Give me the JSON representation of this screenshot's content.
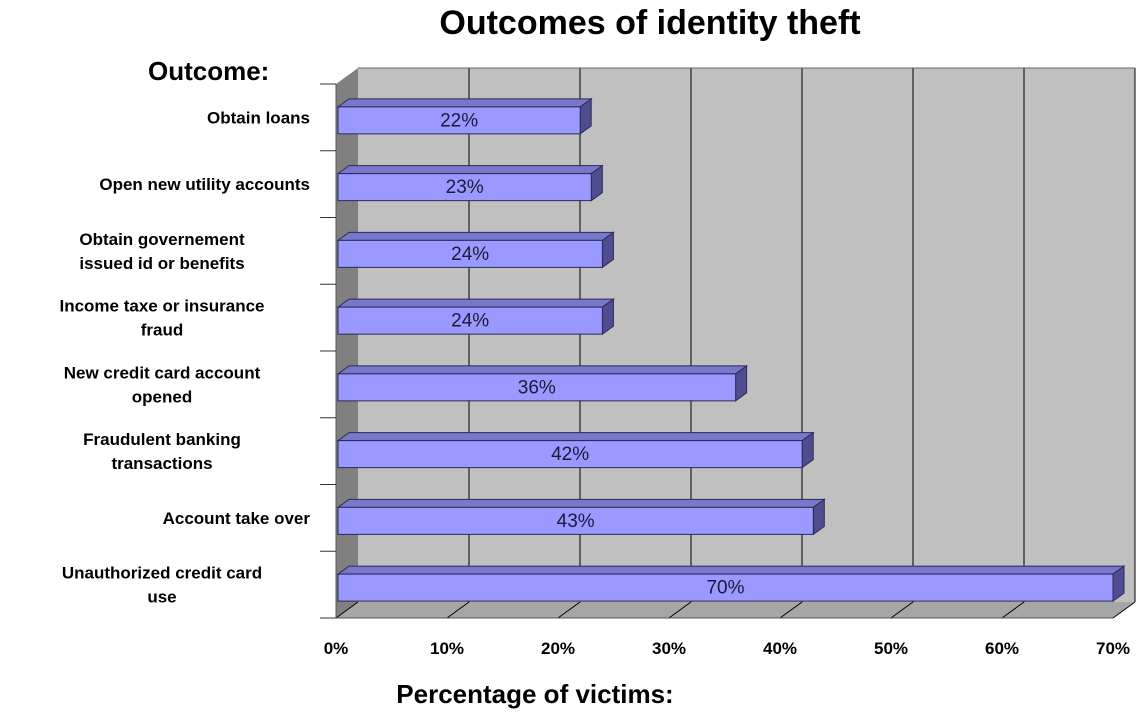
{
  "chart_data": {
    "type": "bar",
    "orientation": "horizontal",
    "title": "Outcomes of identity theft",
    "ylabel": "Outcome:",
    "xlabel": "Percentage of victims:",
    "categories": [
      [
        "Obtain loans"
      ],
      [
        "Open new utility accounts"
      ],
      [
        "Obtain governement",
        "issued id or benefits"
      ],
      [
        "Income taxe or insurance",
        "fraud"
      ],
      [
        "New credit card account",
        "opened"
      ],
      [
        "Fraudulent banking",
        "transactions"
      ],
      [
        "Account take over"
      ],
      [
        "Unauthorized credit card",
        "use"
      ]
    ],
    "values": [
      22,
      23,
      24,
      24,
      36,
      42,
      43,
      70
    ],
    "data_labels": [
      "22%",
      "23%",
      "24%",
      "24%",
      "36%",
      "42%",
      "43%",
      "70%"
    ],
    "xlim": [
      0,
      70
    ],
    "xticks": [
      0,
      10,
      20,
      30,
      40,
      50,
      60,
      70
    ],
    "xtick_labels": [
      "0%",
      "10%",
      "20%",
      "30%",
      "40%",
      "50%",
      "60%",
      "70%"
    ],
    "grid": true,
    "legend": "none",
    "colors": {
      "bar_front": "#9999ff",
      "bar_top": "#7777cc",
      "bar_side": "#4d4d8f",
      "plot_back": "#c0c0c0",
      "plot_floor": "#a6a6a6",
      "plot_wall": "#808080",
      "grid": "#000000"
    }
  }
}
